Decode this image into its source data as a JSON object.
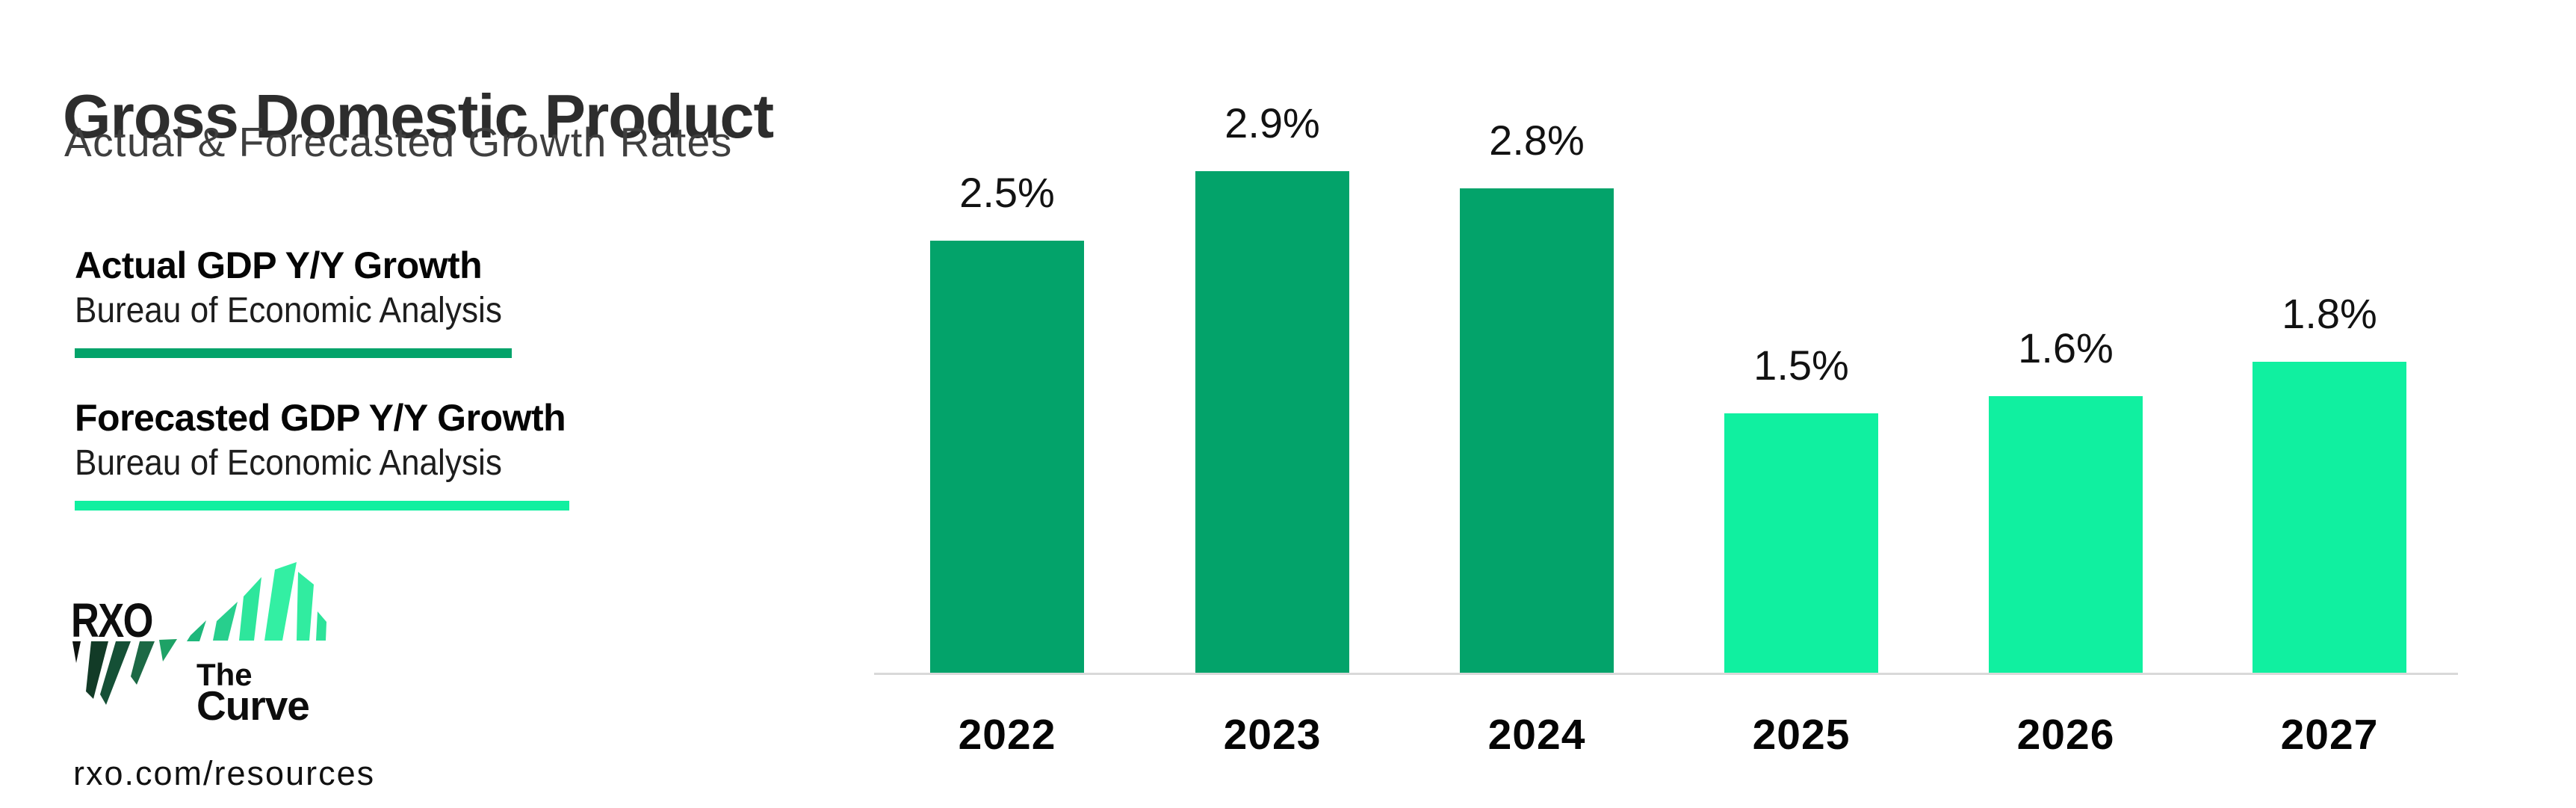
{
  "header": {
    "title": "Gross Domestic Product",
    "subtitle": "Actual & Forecasted Growth Rates"
  },
  "legend": {
    "actual": {
      "label": "Actual GDP Y/Y Growth",
      "source": "Bureau of Economic Analysis",
      "color": "#03a36a"
    },
    "forecast": {
      "label": "Forecasted GDP Y/Y Growth",
      "source": "Bureau of Economic Analysis",
      "color": "#10f0a0"
    }
  },
  "branding": {
    "wordmark": "RXO",
    "product_top": "The",
    "product_bottom": "Curve",
    "url": "rxo.com/resources",
    "slash_colors_dark": [
      "#0d130f",
      "#123b27",
      "#155036",
      "#1c6945",
      "#1ea266"
    ],
    "slash_colors_mint": [
      "#1eb77b",
      "#27cf8d",
      "#2ee69c",
      "#33efa3",
      "#31eca0",
      "#2de39a"
    ]
  },
  "chart_data": {
    "type": "bar",
    "title": "Gross Domestic Product",
    "subtitle": "Actual & Forecasted Growth Rates",
    "categories": [
      "2022",
      "2023",
      "2024",
      "2025",
      "2026",
      "2027"
    ],
    "values": [
      2.5,
      2.9,
      2.8,
      1.5,
      1.6,
      1.8
    ],
    "value_labels": [
      "2.5%",
      "2.9%",
      "2.8%",
      "1.5%",
      "1.6%",
      "1.8%"
    ],
    "series_types": [
      "actual",
      "actual",
      "actual",
      "forecast",
      "forecast",
      "forecast"
    ],
    "palette": {
      "actual": "#03a36a",
      "forecast": "#10f0a0"
    },
    "series": [
      {
        "name": "Actual GDP Y/Y Growth",
        "source": "Bureau of Economic Analysis",
        "categories": [
          "2022",
          "2023",
          "2024"
        ],
        "values": [
          2.5,
          2.9,
          2.8
        ],
        "color": "#03a36a"
      },
      {
        "name": "Forecasted GDP Y/Y Growth",
        "source": "Bureau of Economic Analysis",
        "categories": [
          "2025",
          "2026",
          "2027"
        ],
        "values": [
          1.5,
          1.6,
          1.8
        ],
        "color": "#10f0a0"
      }
    ],
    "xlabel": "",
    "ylabel": "",
    "ylim": [
      0,
      3.1
    ],
    "grid": false,
    "y_axis_shown": false,
    "baseline_color": "#d9d9d9",
    "label_format": "percent",
    "legend_position": "left"
  }
}
